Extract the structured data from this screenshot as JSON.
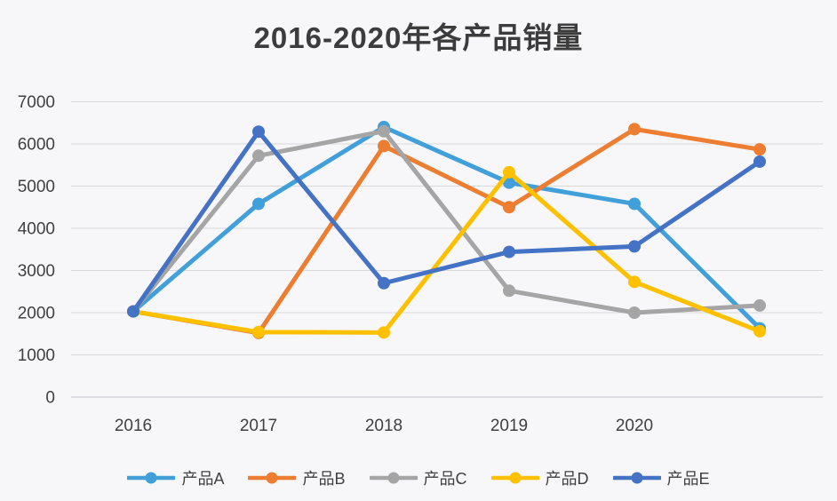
{
  "chart_data": {
    "type": "line",
    "title": "2016-2020年各产品销量",
    "xlabel": "",
    "ylabel": "",
    "categories": [
      "2016",
      "2017",
      "2018",
      "2019",
      "2020",
      ""
    ],
    "series": [
      {
        "name": "产品A",
        "color": "#419fd9",
        "values": [
          2030,
          4580,
          6400,
          5080,
          4580,
          1630
        ]
      },
      {
        "name": "产品B",
        "color": "#ed7d31",
        "values": [
          2030,
          1520,
          5950,
          4500,
          6350,
          5870
        ]
      },
      {
        "name": "产品C",
        "color": "#a5a5a5",
        "values": [
          2030,
          5720,
          6300,
          2520,
          2000,
          2170
        ]
      },
      {
        "name": "产品D",
        "color": "#ffc000",
        "values": [
          2030,
          1540,
          1530,
          5330,
          2730,
          1560
        ]
      },
      {
        "name": "产品E",
        "color": "#4472c4",
        "values": [
          2030,
          6290,
          2700,
          3440,
          3570,
          5580
        ]
      }
    ],
    "ylim": [
      0,
      7000
    ],
    "ytick_step": 1000,
    "ytick_labels": [
      "0",
      "1000",
      "2000",
      "3000",
      "4000",
      "5000",
      "6000",
      "7000"
    ],
    "grid": true,
    "legend_position": "bottom",
    "legend_entries": [
      "产品A",
      "产品B",
      "产品C",
      "产品D",
      "产品E"
    ]
  },
  "colors": {
    "background": "#f7f6f9",
    "gridline": "#d9d9dc",
    "axis_line": "#c6c6ca",
    "tick_text": "#404040",
    "title_text": "#3c3c3c"
  }
}
